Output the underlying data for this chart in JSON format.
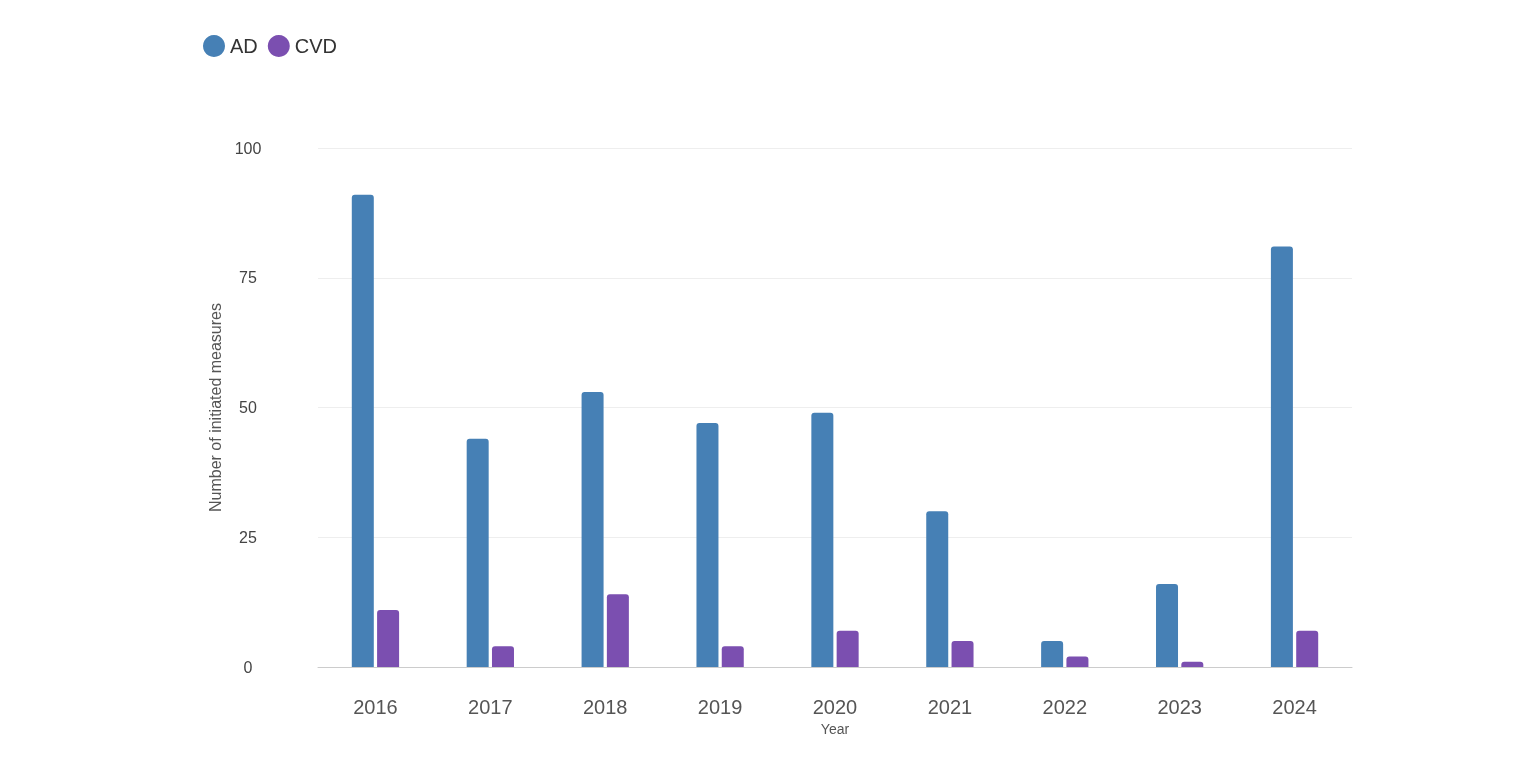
{
  "chart_data": {
    "type": "bar",
    "xlabel": "Year",
    "ylabel": "Number of initiated measures",
    "categories": [
      "2016",
      "2017",
      "2018",
      "2019",
      "2020",
      "2021",
      "2022",
      "2023",
      "2024"
    ],
    "series": [
      {
        "name": "AD",
        "color": "#4680b5",
        "values": [
          91,
          44,
          53,
          47,
          49,
          30,
          5,
          16,
          81
        ]
      },
      {
        "name": "CVD",
        "color": "#7b4fb0",
        "values": [
          11,
          4,
          14,
          4,
          7,
          5,
          2,
          1,
          7
        ]
      }
    ],
    "ylim": [
      0,
      100
    ],
    "yticks": [
      0,
      25,
      50,
      75,
      100
    ],
    "grid": "y",
    "legend": "top left"
  }
}
